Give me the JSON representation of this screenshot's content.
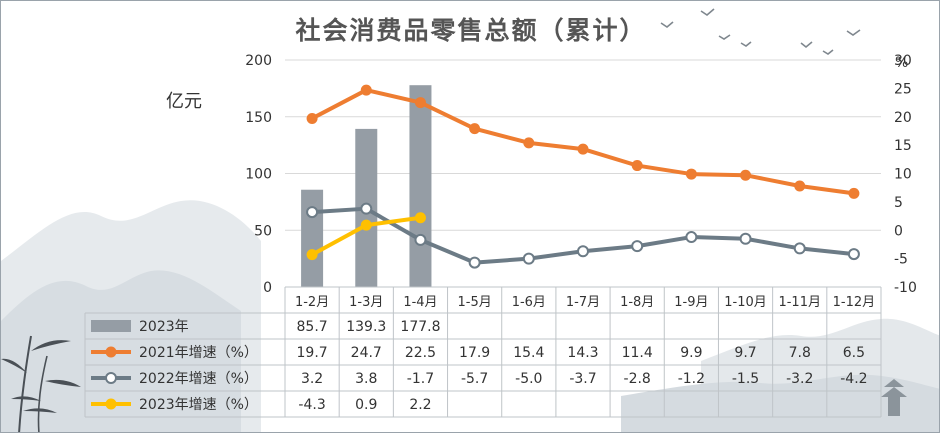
{
  "title": "社会消费品零售总额（累计）",
  "unit_left": "亿元",
  "unit_right": "%",
  "colors": {
    "bar": "#959da5",
    "s2021": "#ee7d31",
    "s2022": "#6c7b86",
    "s2023": "#ffc000",
    "grid": "#d9d9d9"
  },
  "chart_data": {
    "type": "bar+line+table",
    "title": "社会消费品零售总额（累计）",
    "categories": [
      "1-2月",
      "1-3月",
      "1-4月",
      "1-5月",
      "1-6月",
      "1-7月",
      "1-8月",
      "1-9月",
      "1-10月",
      "1-11月",
      "1-12月"
    ],
    "y_left": {
      "label": "亿元",
      "range": [
        0,
        200
      ],
      "ticks": [
        "0",
        "50",
        "100",
        "150",
        "200"
      ]
    },
    "y_right": {
      "label": "%",
      "range": [
        -10,
        30
      ],
      "ticks": [
        "-10",
        "-5",
        "0",
        "5",
        "10",
        "15",
        "20",
        "25",
        "30"
      ]
    },
    "series": [
      {
        "name": "2023年",
        "kind": "bar",
        "axis": "left",
        "values": [
          85.7,
          139.3,
          177.8,
          null,
          null,
          null,
          null,
          null,
          null,
          null,
          null
        ],
        "labels": [
          "85.7",
          "139.3",
          "177.8",
          "",
          "",
          "",
          "",
          "",
          "",
          "",
          ""
        ]
      },
      {
        "name": "2021年增速（%）",
        "kind": "line",
        "marker": "filled",
        "axis": "right",
        "values": [
          19.7,
          24.7,
          22.5,
          17.9,
          15.4,
          14.3,
          11.4,
          9.9,
          9.7,
          7.8,
          6.5
        ],
        "labels": [
          "19.7",
          "24.7",
          "22.5",
          "17.9",
          "15.4",
          "14.3",
          "11.4",
          "9.9",
          "9.7",
          "7.8",
          "6.5"
        ]
      },
      {
        "name": "2022年增速（%）",
        "kind": "line",
        "marker": "hollow",
        "axis": "right",
        "values": [
          3.2,
          3.8,
          -1.7,
          -5.7,
          -5.0,
          -3.7,
          -2.8,
          -1.2,
          -1.5,
          -3.2,
          -4.2
        ],
        "labels": [
          "3.2",
          "3.8",
          "-1.7",
          "-5.7",
          "-5.0",
          "-3.7",
          "-2.8",
          "-1.2",
          "-1.5",
          "-3.2",
          "-4.2"
        ]
      },
      {
        "name": "2023年增速（%）",
        "kind": "line",
        "marker": "filled",
        "axis": "right",
        "values": [
          -4.3,
          0.9,
          2.2,
          null,
          null,
          null,
          null,
          null,
          null,
          null,
          null
        ],
        "labels": [
          "-4.3",
          "0.9",
          "2.2",
          "",
          "",
          "",
          "",
          "",
          "",
          "",
          ""
        ]
      }
    ],
    "grid": true,
    "legend": "data-table"
  }
}
